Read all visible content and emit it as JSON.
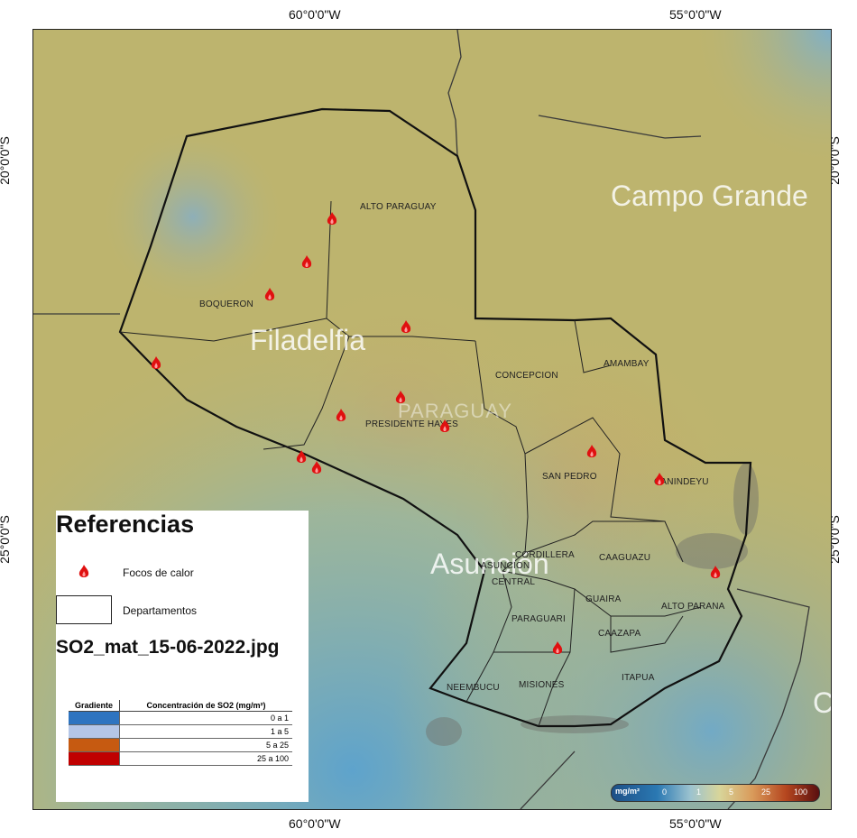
{
  "coords": {
    "top_left_lon": "60°0'0\"W",
    "top_right_lon": "55°0'0\"W",
    "bottom_left_lon": "60°0'0\"W",
    "bottom_right_lon": "55°0'0\"W",
    "left_top_lat": "20°0'0\"S",
    "left_bottom_lat": "25°0'0\"S",
    "right_top_lat": "20°0'0\"S",
    "right_bottom_lat": "25°0'0\"S"
  },
  "cities": {
    "campo_grande": "Campo Grande",
    "filadelfia": "Filadelfia",
    "asuncion": "Asunción",
    "corumba_c": "C"
  },
  "country": "PARAGUAY",
  "departments": {
    "alto_paraguay": "ALTO PARAGUAY",
    "boqueron": "BOQUERON",
    "presidente_hayes": "PRESIDENTE HAYES",
    "concepcion": "CONCEPCION",
    "amambay": "AMAMBAY",
    "san_pedro": "SAN PEDRO",
    "canindeyu": "CANINDEYU",
    "cordillera": "CORDILLERA",
    "caaguazu": "CAAGUAZU",
    "asuncion": "ASUNCION",
    "central": "CENTRAL",
    "guaira": "GUAIRA",
    "alto_parana": "ALTO PARANA",
    "paraguari": "PARAGUARI",
    "caazapa": "CAAZAPA",
    "neembucu": "NEEMBUCU",
    "misiones": "MISIONES",
    "itapua": "ITAPUA"
  },
  "legend": {
    "title": "Referencias",
    "fire_label": "Focos de calor",
    "dept_label": "Departamentos",
    "filename": "SO2_mat_15-06-2022.jpg",
    "gradient_header": "Gradiente",
    "concentration_header": "Concentración de SO2 (mg/m²)",
    "rows": [
      {
        "range": "0 a 1",
        "color": "#2e74c0"
      },
      {
        "range": "1 a 5",
        "color": "#b4c6e7"
      },
      {
        "range": "5 a 25",
        "color": "#c65a11"
      },
      {
        "range": "25 a 100",
        "color": "#c00000"
      }
    ]
  },
  "scale": {
    "units": "mg/m²",
    "ticks": [
      "0",
      "1",
      "5",
      "25",
      "100"
    ]
  },
  "colors": {
    "map_base": "#c0b56d",
    "water_low": "#6aa4c6",
    "fire": "#e01010"
  },
  "fire_count": 17
}
